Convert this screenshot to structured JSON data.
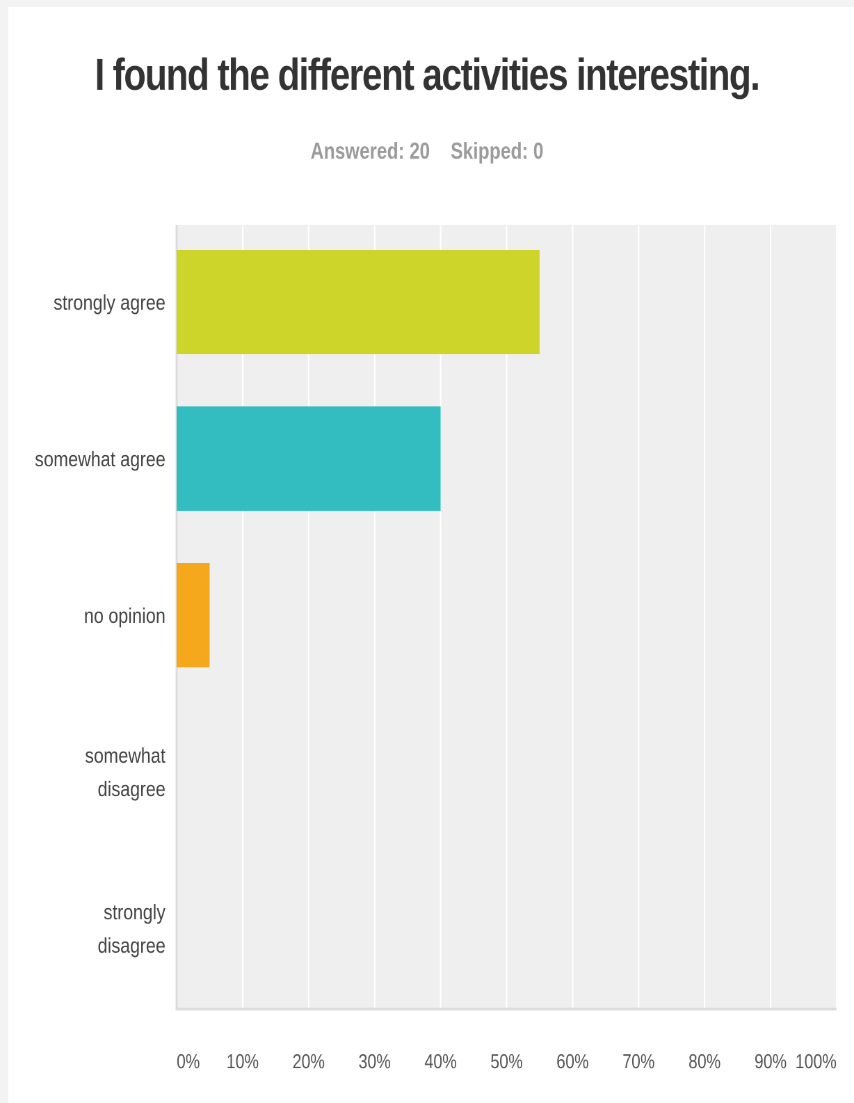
{
  "chart_data": {
    "type": "bar",
    "orientation": "horizontal",
    "title": "I found the different activities interesting.",
    "summary": {
      "answered_label": "Answered: 20",
      "skipped_label": "Skipped: 0"
    },
    "categories": [
      "strongly agree",
      "somewhat agree",
      "no opinion",
      "somewhat disagree",
      "strongly disagree"
    ],
    "category_lines": [
      [
        "strongly agree"
      ],
      [
        "somewhat agree"
      ],
      [
        "no opinion"
      ],
      [
        "somewhat",
        "disagree"
      ],
      [
        "strongly",
        "disagree"
      ]
    ],
    "values": [
      55,
      40,
      5,
      0,
      0
    ],
    "colors": [
      "#cdd52a",
      "#33bdc0",
      "#f5a81c",
      "#e05a47",
      "#8b6fb3"
    ],
    "xlim": [
      0,
      100
    ],
    "xticks": [
      "0%",
      "10%",
      "20%",
      "30%",
      "40%",
      "50%",
      "60%",
      "70%",
      "80%",
      "90%",
      "100%"
    ],
    "grid": true,
    "plot_background": "#efefef"
  }
}
